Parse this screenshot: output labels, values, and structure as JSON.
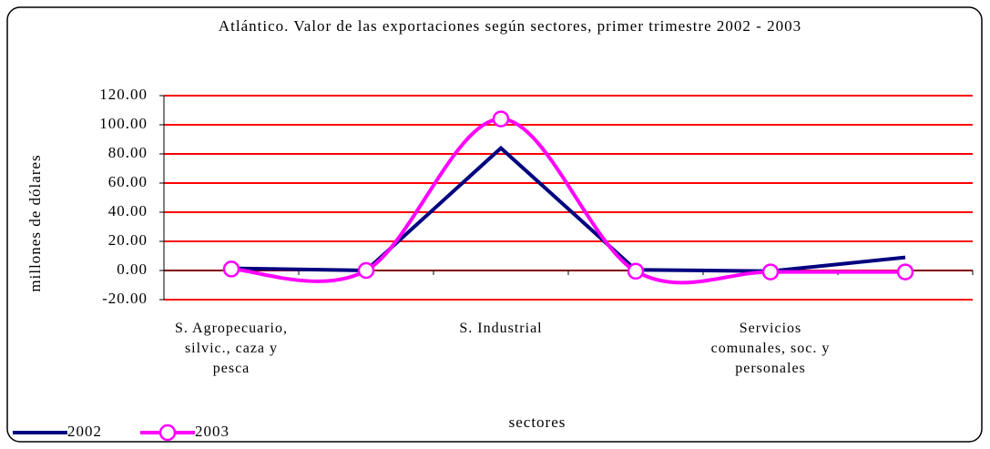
{
  "chart_data": {
    "type": "line",
    "title": "Atlántico. Valor de las exportaciones según sectores, primer trimestre 2002 - 2003",
    "xlabel": "sectores",
    "ylabel": "millones de dólares",
    "categories": [
      "S. Agropecuario, silvic., caza y pesca",
      null,
      "S. Industrial",
      null,
      "Servicios comunales, soc. y personales",
      null
    ],
    "series": [
      {
        "name": "2002",
        "color": "#000080",
        "smooth": false,
        "values": [
          1.5,
          0,
          84,
          0.5,
          -0.5,
          9
        ]
      },
      {
        "name": "2003",
        "color": "#ff00ff",
        "smooth": true,
        "values": [
          1,
          0,
          104,
          -0.5,
          -1,
          -1
        ]
      }
    ],
    "ylim": [
      -20,
      120
    ],
    "yticks": [
      {
        "value": -20,
        "label": "-20.00"
      },
      {
        "value": 0,
        "label": "0.00"
      },
      {
        "value": 20,
        "label": "20.00"
      },
      {
        "value": 40,
        "label": "40.00"
      },
      {
        "value": 60,
        "label": "60.00"
      },
      {
        "value": 80,
        "label": "80.00"
      },
      {
        "value": 100,
        "label": "100.00"
      },
      {
        "value": 120,
        "label": "120.00"
      }
    ],
    "grid": true,
    "grid_color": "#ff0000",
    "legend": "bottom-left"
  }
}
